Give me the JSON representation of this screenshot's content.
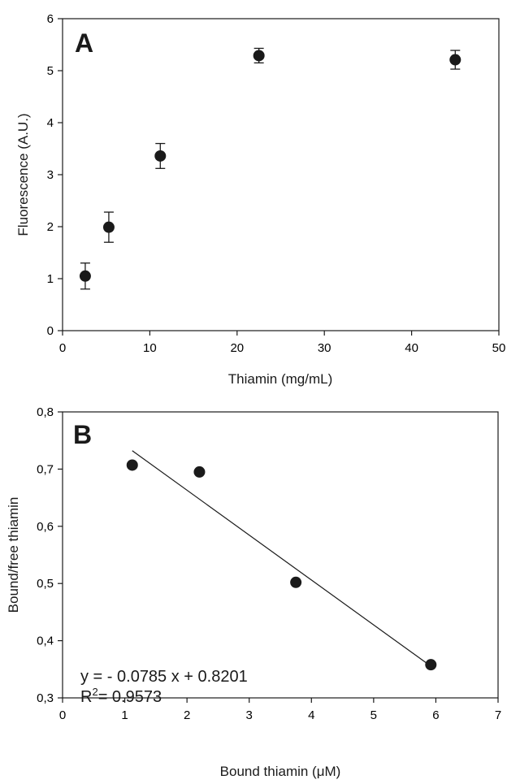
{
  "chart_data": [
    {
      "panel": "A",
      "type": "scatter",
      "xlabel": "Thiamin (mg/mL)",
      "ylabel": "Fluorescence (A.U.)",
      "xlim": [
        0,
        50
      ],
      "ylim": [
        0,
        6
      ],
      "xticks": [
        0,
        10,
        20,
        30,
        40,
        50
      ],
      "xtick_labels": [
        "0",
        "10",
        "20",
        "30",
        "40",
        "50"
      ],
      "yticks": [
        0,
        1,
        2,
        3,
        4,
        5,
        6
      ],
      "ytick_labels": [
        "0",
        "1",
        "2",
        "3",
        "4",
        "5",
        "6"
      ],
      "grid": false,
      "series": [
        {
          "points": [
            {
              "x": 2.6,
              "y": 1.05,
              "err": 0.25
            },
            {
              "x": 5.3,
              "y": 1.99,
              "err": 0.29
            },
            {
              "x": 11.2,
              "y": 3.36,
              "err": 0.24
            },
            {
              "x": 22.5,
              "y": 5.29,
              "err": 0.14
            },
            {
              "x": 45.0,
              "y": 5.21,
              "err": 0.18
            }
          ]
        }
      ]
    },
    {
      "panel": "B",
      "type": "scatter",
      "xlabel": "Bound thiamin (μM)",
      "ylabel": "Bound/free thiamin",
      "xlim": [
        0,
        7
      ],
      "ylim": [
        0.3,
        0.8
      ],
      "xticks": [
        0,
        1,
        2,
        3,
        4,
        5,
        6,
        7
      ],
      "xtick_labels": [
        "0",
        "1",
        "2",
        "3",
        "4",
        "5",
        "6",
        "7"
      ],
      "yticks": [
        0.3,
        0.4,
        0.5,
        0.6,
        0.7,
        0.8
      ],
      "ytick_labels": [
        "0,3",
        "0,4",
        "0,5",
        "0,6",
        "0,7",
        "0,8"
      ],
      "grid": false,
      "series": [
        {
          "points": [
            {
              "x": 1.12,
              "y": 0.707
            },
            {
              "x": 2.2,
              "y": 0.695
            },
            {
              "x": 3.75,
              "y": 0.502
            },
            {
              "x": 5.92,
              "y": 0.358
            }
          ]
        }
      ],
      "fit_line": {
        "slope": -0.0785,
        "intercept": 0.8201,
        "x_range": [
          1.12,
          5.92
        ]
      },
      "annotation_lines": [
        "y = - 0.0785 x + 0.8201",
        "R",
        "2",
        "=  0.9573"
      ]
    }
  ]
}
